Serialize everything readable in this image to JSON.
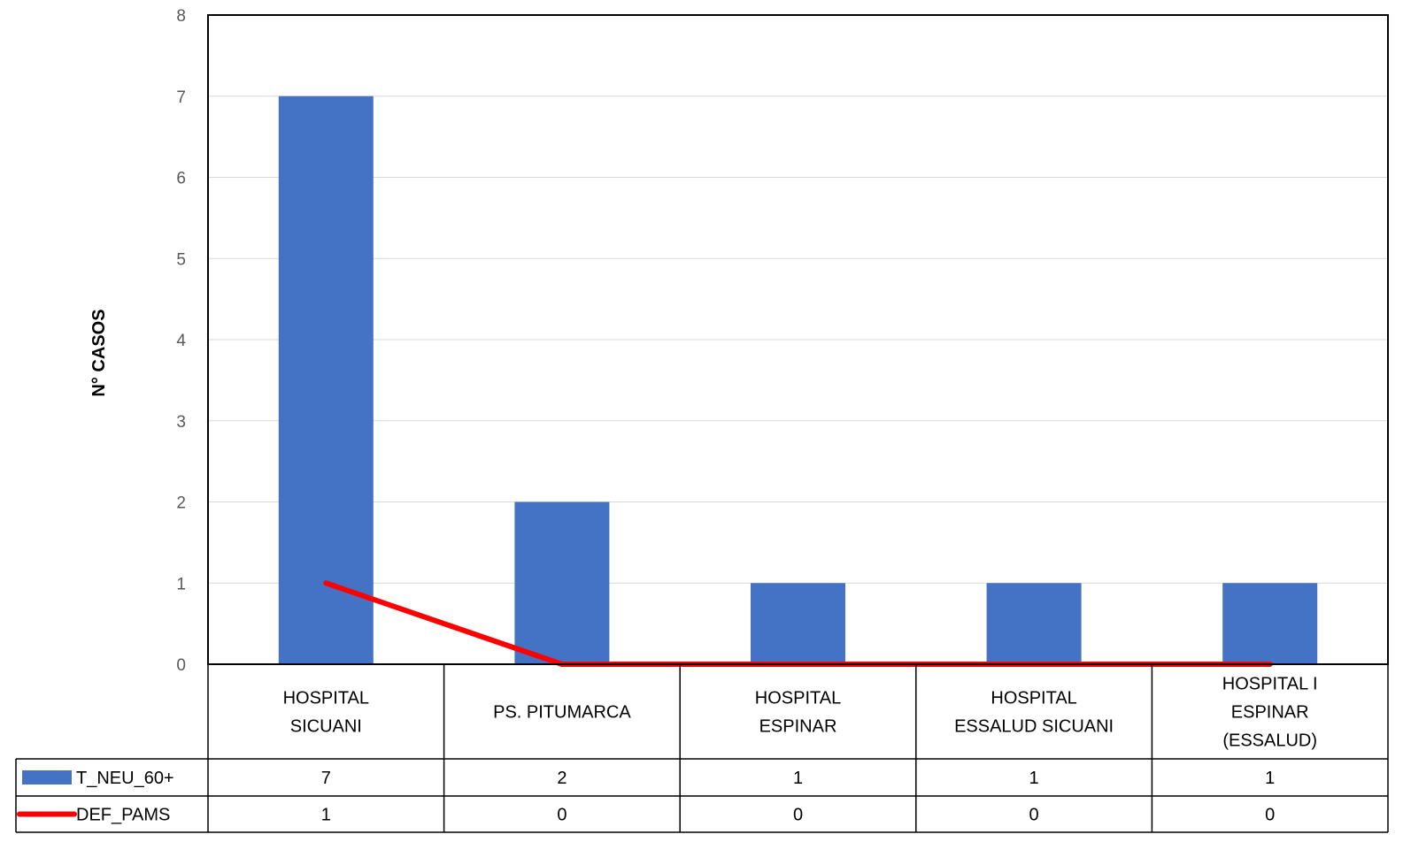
{
  "chart_data": {
    "type": "bar",
    "ylabel": "N° CASOS",
    "ylim": [
      0,
      8
    ],
    "yticks": [
      0,
      1,
      2,
      3,
      4,
      5,
      6,
      7,
      8
    ],
    "grid": true,
    "legend_placement": "data-table-left",
    "categories": [
      [
        "HOSPITAL",
        "SICUANI"
      ],
      [
        "PS. PITUMARCA"
      ],
      [
        "HOSPITAL",
        "ESPINAR"
      ],
      [
        "HOSPITAL",
        "ESSALUD SICUANI"
      ],
      [
        "HOSPITAL I",
        "ESPINAR",
        "(ESSALUD)"
      ]
    ],
    "series": [
      {
        "name": "T_NEU_60+",
        "type": "bar",
        "color": "#4472C4",
        "values": [
          7,
          2,
          1,
          1,
          1
        ]
      },
      {
        "name": "DEF_PAMS",
        "type": "line",
        "color": "#FF0000",
        "values": [
          1,
          0,
          0,
          0,
          0
        ]
      }
    ]
  }
}
